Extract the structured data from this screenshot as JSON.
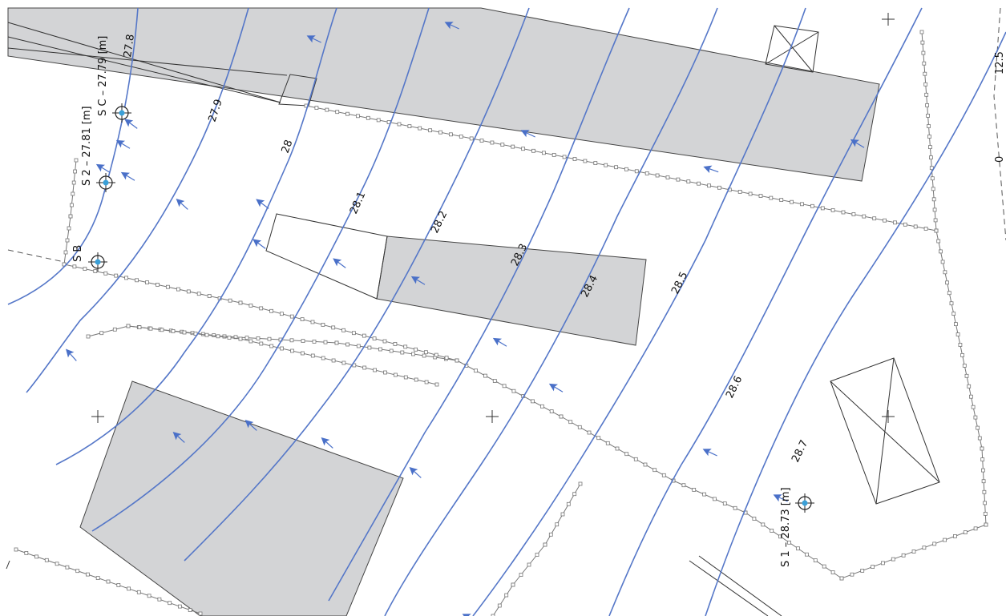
{
  "map": {
    "contour_labels": [
      "27.8",
      "27.9",
      "28",
      "28.1",
      "28.2",
      "28.3",
      "28.4",
      "28.5",
      "28.6",
      "28.7"
    ],
    "wells": [
      {
        "id": "sc",
        "label": "S C – 27.79 [m]"
      },
      {
        "id": "s2",
        "label": "S 2 – 27.81 [m]"
      },
      {
        "id": "sb",
        "label": "S B"
      },
      {
        "id": "s1",
        "label": "S 1 – 28.73 [m]"
      }
    ],
    "edge_labels": {
      "top_right": "12.5",
      "right_mid": "0"
    },
    "colors": {
      "contour": "#5577c8",
      "arrow": "#4a70c8",
      "building": "#d3d4d6",
      "well_dot": "#3aa0d8"
    }
  }
}
